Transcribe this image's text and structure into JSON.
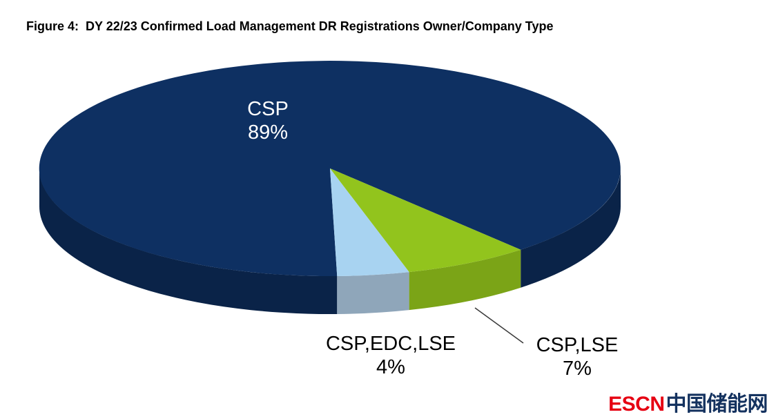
{
  "chart_data": {
    "type": "pie",
    "title": "Figure 4:  DY 22/23 Confirmed Load Management DR Registrations Owner/Company Type",
    "effect": "3d",
    "direction": "clockwise",
    "start_angle_deg": 88.6,
    "legend_position": "none",
    "background_color": "#FFFFFF",
    "slices": [
      {
        "label": "CSP",
        "value": 89,
        "pct_label": "89%",
        "color": "#0E3062",
        "side_color": "#0A2348",
        "label_position": "inside",
        "label_color": "#FFFFFF"
      },
      {
        "label": "CSP,LSE",
        "value": 7,
        "pct_label": "7%",
        "color": "#92C41D",
        "side_color": "#7BA417",
        "label_position": "outside-with-leader-line",
        "label_color": "#000000"
      },
      {
        "label": "CSP,EDC,LSE",
        "value": 4,
        "pct_label": "4%",
        "color": "#A8D3F1",
        "side_color": "#8FA6BA",
        "label_position": "outside",
        "label_color": "#000000"
      }
    ]
  },
  "watermark": {
    "logo_text": "ESCN",
    "site_text": "中国储能网",
    "logo_color": "#E60012",
    "site_color": "#14325F"
  }
}
